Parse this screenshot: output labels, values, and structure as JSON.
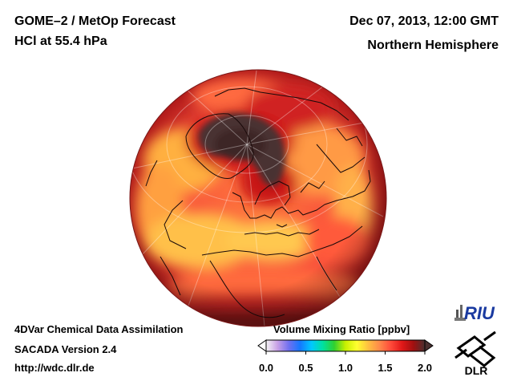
{
  "header": {
    "product": "GOME–2 / MetOp Forecast",
    "quantity": "HCl at 55.4 hPa",
    "datetime": "Dec 07, 2013, 12:00 GMT",
    "region": "Northern Hemisphere"
  },
  "footer": {
    "line1": "4DVar Chemical Data Assimilation",
    "line2": "SACADA Version 2.4",
    "line3": "http://wdc.dlr.de"
  },
  "colorbar": {
    "title": "Volume Mixing Ratio [ppbv]",
    "min": 0.0,
    "max": 2.0,
    "ticks": [
      "0.0",
      "0.5",
      "1.0",
      "1.5",
      "2.0"
    ],
    "colors": [
      "#f4f4f4",
      "#c8a0e6",
      "#7070f0",
      "#1478ff",
      "#00c8ff",
      "#00e0a0",
      "#30d030",
      "#c8f000",
      "#ffff30",
      "#ffc040",
      "#ff8a4a",
      "#ff4a3a",
      "#e01818",
      "#a01010",
      "#4a3030"
    ]
  },
  "logos": {
    "riu": "RIU",
    "dlr": "DLR"
  }
}
